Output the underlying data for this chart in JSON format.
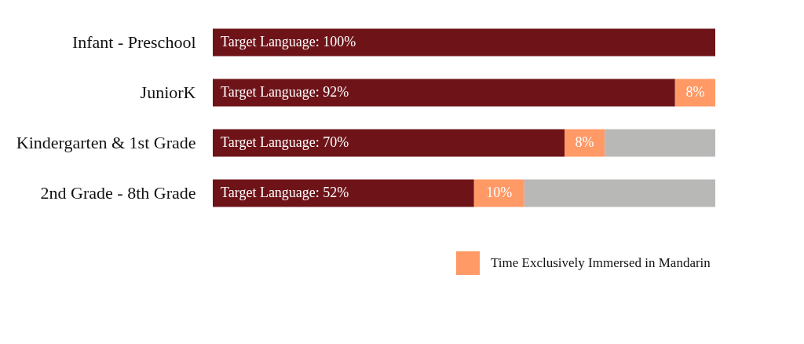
{
  "chart_data": {
    "type": "bar",
    "orientation": "horizontal",
    "stacked": true,
    "legend": "bottom right",
    "categories": [
      "Infant - Preschool",
      "JuniorK",
      "Kindergarten & 1st Grade",
      "2nd Grade - 8th Grade"
    ],
    "series": [
      {
        "color": "#6e1419",
        "values": [
          100,
          92,
          70,
          52
        ],
        "value_labels": [
          "Target Language: 100%",
          "Target Language: 92%",
          "Target Language: 70%",
          "Target Language: 52%"
        ]
      },
      {
        "name": "Time Exclusively Immersed in Mandarin",
        "color": "#ff9966",
        "values": [
          null,
          8,
          8,
          10
        ],
        "value_labels": [
          null,
          "8%",
          "8%",
          "10%"
        ]
      },
      {
        "color": "#b8b8b7",
        "values": [
          null,
          null,
          22,
          38
        ]
      }
    ]
  }
}
